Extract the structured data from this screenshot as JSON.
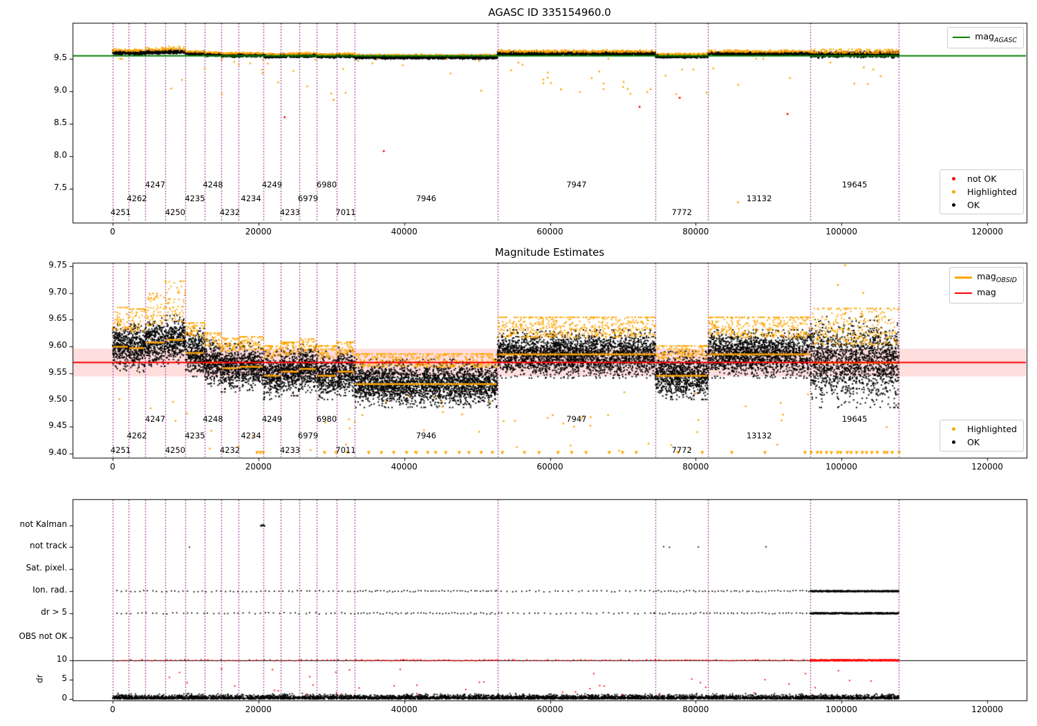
{
  "titles": {
    "top": "AGASC ID 335154960.0",
    "middle": "Magnitude Estimates"
  },
  "legends": {
    "top_line": {
      "main": "mag",
      "sub": "AGASC",
      "color": "#008000"
    },
    "top_points": [
      {
        "label": "not OK",
        "color": "#ff0000"
      },
      {
        "label": "Highlighted",
        "color": "#ffa500"
      },
      {
        "label": "OK",
        "color": "#000000"
      }
    ],
    "middle_lines": [
      {
        "main": "mag",
        "sub": "OBSID",
        "color": "#ffa500"
      },
      {
        "main": "mag",
        "sub": "",
        "color": "#ff0000"
      }
    ],
    "middle_points": [
      {
        "label": "Highlighted",
        "color": "#ffa500"
      },
      {
        "label": "OK",
        "color": "#000000"
      }
    ]
  },
  "axes": {
    "x": {
      "ticks": [
        "0",
        "20000",
        "40000",
        "60000",
        "80000",
        "100000",
        "120000"
      ],
      "tick_values": [
        0,
        20000,
        40000,
        60000,
        80000,
        100000,
        120000
      ],
      "lim": [
        -5500,
        125400
      ]
    },
    "top_y": {
      "ticks": [
        "7.5",
        "8.0",
        "8.5",
        "9.0",
        "9.5"
      ],
      "tick_values": [
        7.5,
        8.0,
        8.5,
        9.0,
        9.5
      ],
      "lim": [
        6.98,
        10.05
      ]
    },
    "middle_y": {
      "ticks": [
        "9.40",
        "9.45",
        "9.50",
        "9.55",
        "9.60",
        "9.65",
        "9.70",
        "9.75"
      ],
      "tick_values": [
        9.4,
        9.45,
        9.5,
        9.55,
        9.6,
        9.65,
        9.7,
        9.75
      ],
      "lim": [
        9.392,
        9.756
      ]
    },
    "bottom_rows": [
      "not Kalman",
      "not track",
      "Sat. pixel.",
      "Ion. rad.",
      "dr > 5",
      "OBS not OK"
    ],
    "dr_y": {
      "label": "dr",
      "ticks": [
        "0",
        "5",
        "10"
      ],
      "tick_values": [
        0,
        5,
        10
      ]
    }
  },
  "colors": {
    "ok": "#000000",
    "highlighted": "#ffa500",
    "not_ok": "#ff0000",
    "mag_agasc_line": "#008000",
    "mag_line": "#ff0000",
    "mag_obsid_line": "#ffa500",
    "band_fill": "rgba(255,0,0,0.13)",
    "obsid_boundary": "#800080"
  },
  "chart_data": {
    "type": "scatter",
    "mag_agasc": 9.545,
    "mag_fit": 9.57,
    "band": [
      9.544,
      9.596
    ],
    "obsids": [
      {
        "id": "4251",
        "start": 0,
        "end": 2180,
        "mag_obsid": 9.6
      },
      {
        "id": "4262",
        "start": 2180,
        "end": 4460,
        "mag_obsid": 9.597
      },
      {
        "id": "4247",
        "start": 4460,
        "end": 7210,
        "mag_obsid": 9.608
      },
      {
        "id": "4250",
        "start": 7210,
        "end": 9960,
        "mag_obsid": 9.613
      },
      {
        "id": "4235",
        "start": 9960,
        "end": 12620,
        "mag_obsid": 9.589
      },
      {
        "id": "4248",
        "start": 12620,
        "end": 14890,
        "mag_obsid": 9.57
      },
      {
        "id": "4232",
        "start": 14890,
        "end": 17270,
        "mag_obsid": 9.56
      },
      {
        "id": "4234",
        "start": 17270,
        "end": 20680,
        "mag_obsid": 9.563
      },
      {
        "id": "4249",
        "start": 20680,
        "end": 23050,
        "mag_obsid": 9.546
      },
      {
        "id": "4233",
        "start": 23050,
        "end": 25610,
        "mag_obsid": 9.553
      },
      {
        "id": "6979",
        "start": 25610,
        "end": 27990,
        "mag_obsid": 9.559
      },
      {
        "id": "6980",
        "start": 27990,
        "end": 30740,
        "mag_obsid": 9.546
      },
      {
        "id": "7011",
        "start": 30740,
        "end": 33210,
        "mag_obsid": 9.553
      },
      {
        "id": "7946",
        "start": 33210,
        "end": 52800,
        "mag_obsid": 9.531
      },
      {
        "id": "7947",
        "start": 52800,
        "end": 74480,
        "mag_obsid": 9.586
      },
      {
        "id": "7772",
        "start": 74480,
        "end": 81690,
        "mag_obsid": 9.546
      },
      {
        "id": "13132",
        "start": 81690,
        "end": 95730,
        "mag_obsid": 9.586
      },
      {
        "id": "19645",
        "start": 95730,
        "end": 107870,
        "mag_obsid": 9.571
      }
    ],
    "cluster_overrides": {
      "4251": {
        "orange_extra": 0.02
      },
      "4262": {
        "orange_extra": 0.02
      },
      "4247": {
        "orange_extra": 0.04
      },
      "4250": {
        "orange_extra": 0.06
      },
      "7947": {
        "orange_extra": 0.015
      },
      "13132": {
        "orange_extra": 0.015
      },
      "19645": {
        "black_sd": 0.033,
        "clip": 0.085,
        "orange_extra": 0.05,
        "top_sd": 0.02,
        "top_clip": 0.055
      }
    },
    "top_outliers_red": [
      [
        23600,
        8.6
      ],
      [
        37200,
        8.08
      ],
      [
        72300,
        8.76
      ],
      [
        77800,
        8.9
      ],
      [
        92600,
        8.65
      ]
    ],
    "top_outliers_orange": [
      [
        85800,
        7.29
      ],
      [
        30300,
        8.87
      ],
      [
        61500,
        9.03
      ]
    ],
    "middle_outliers_orange": [
      [
        100500,
        9.752
      ],
      [
        99500,
        9.715
      ],
      [
        103000,
        9.7
      ]
    ],
    "top_scatter": {
      "count": 65,
      "y_top": 9.5,
      "y_span": 0.55
    },
    "middle_scatter_low": {
      "count": 55,
      "y_min": 9.4,
      "y_max": 9.515
    },
    "middle_clip_ranges": [
      [
        19800,
        21200,
        500
      ],
      [
        29500,
        33000,
        1600
      ],
      [
        35500,
        52800,
        1500
      ],
      [
        54000,
        74000,
        2300
      ],
      [
        78000,
        95000,
        4000
      ],
      [
        95900,
        107800,
        700
      ]
    ],
    "dr_black": {
      "count": 5200,
      "sd": 0.5,
      "max": 2.8
    },
    "dr_red_scatter": {
      "count": 42,
      "min": 1.0,
      "max": 8.5
    },
    "dr10_red_ranges": [
      [
        800,
        33210,
        560
      ],
      [
        33210,
        52800,
        300
      ],
      [
        52800,
        74480,
        500
      ],
      [
        74480,
        95730,
        400
      ],
      [
        95730,
        107870,
        36
      ]
    ],
    "flags": {
      "not_kalman_ranges": [
        [
          20300,
          20900,
          70
        ]
      ],
      "not_track_points": [
        10530,
        75600,
        76400,
        80350,
        89650
      ],
      "sat_pixel_points": [],
      "ion_rad_ranges": [
        [
          500,
          33210,
          620
        ],
        [
          33210,
          52800,
          400
        ],
        [
          52800,
          74480,
          650
        ],
        [
          74480,
          95730,
          430
        ],
        [
          95730,
          107870,
          38
        ]
      ],
      "dr5_ranges": [
        [
          500,
          33210,
          700
        ],
        [
          33210,
          52800,
          430
        ],
        [
          52800,
          74480,
          720
        ],
        [
          74480,
          95730,
          470
        ],
        [
          95730,
          107870,
          38
        ]
      ],
      "obs_not_ok_points": []
    }
  }
}
